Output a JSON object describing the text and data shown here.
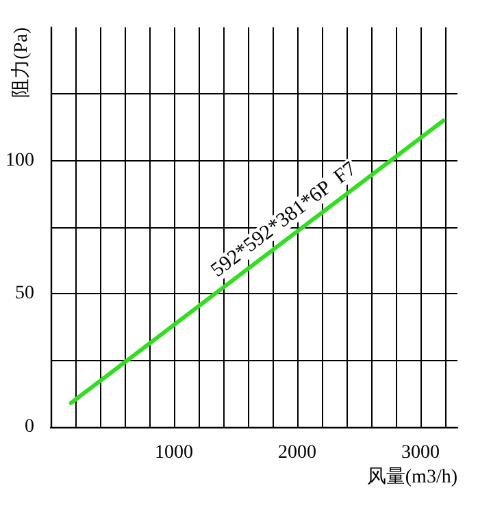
{
  "chart_data": {
    "type": "line",
    "xlabel": "风量(m3/h)",
    "ylabel": "阻力(Pa)",
    "annotations": [
      "592*592*381*6P  F7"
    ],
    "x": [
      165,
      3185
    ],
    "series": [
      {
        "color": "#33dd22",
        "values": [
          9,
          115
        ]
      }
    ],
    "xlim": [
      0,
      3300
    ],
    "xticks": [
      {
        "value": 200,
        "label": null
      },
      {
        "value": 400,
        "label": null
      },
      {
        "value": 600,
        "label": null
      },
      {
        "value": 800,
        "label": null
      },
      1000,
      {
        "value": 1200,
        "label": null
      },
      {
        "value": 1400,
        "label": null
      },
      {
        "value": 1600,
        "label": null
      },
      {
        "value": 1800,
        "label": null
      },
      2000,
      {
        "value": 2200,
        "label": null
      },
      {
        "value": 2400,
        "label": null
      },
      {
        "value": 2600,
        "label": null
      },
      {
        "value": 2800,
        "label": null
      },
      3000,
      {
        "value": 3200,
        "label": null
      }
    ],
    "ylim": [
      0,
      150
    ],
    "yticks": [
      0,
      {
        "value": 25,
        "label": null
      },
      50,
      {
        "value": 75,
        "label": null
      },
      100,
      {
        "value": 125,
        "label": null
      }
    ],
    "grid": true,
    "marker": "none",
    "line_style": "solid"
  }
}
